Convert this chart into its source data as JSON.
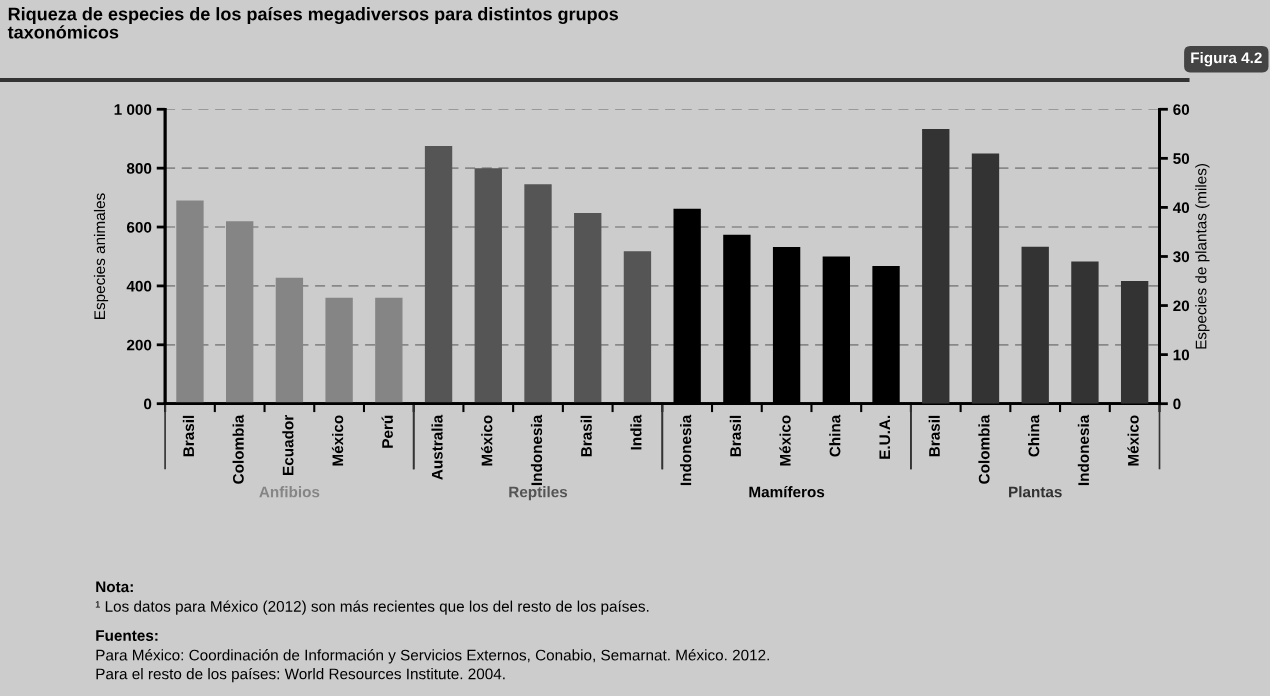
{
  "chart_data": {
    "type": "bar",
    "title": "Riqueza de especies de los países megadiversos para distintos grupos\ntaxonómicos",
    "ylabel": "Especies animales",
    "y2label": "Especies de plantas (miles)",
    "categories": [
      "Brasil",
      "Colombia",
      "Ecuador",
      "México",
      "Perú",
      "Australia",
      "México",
      "Indonesia",
      "Brasil",
      "India",
      "Indonesia",
      "Brasil",
      "México",
      "China",
      "E.U.A.",
      "Brasil",
      "Colombia",
      "China",
      "Indonesia",
      "México"
    ],
    "series": [
      {
        "name": "Anfibios",
        "color": "#858585",
        "values": [
          690,
          620,
          428,
          360,
          360,
          null,
          null,
          null,
          null,
          null,
          null,
          null,
          null,
          null,
          null,
          null,
          null,
          null,
          null,
          null
        ]
      },
      {
        "name": "Reptiles",
        "color": "#555555",
        "values": [
          null,
          null,
          null,
          null,
          null,
          875,
          800,
          745,
          648,
          518,
          null,
          null,
          null,
          null,
          null,
          null,
          null,
          null,
          null,
          null
        ]
      },
      {
        "name": "Mamíferos",
        "color": "#000000",
        "values": [
          null,
          null,
          null,
          null,
          null,
          null,
          null,
          null,
          null,
          null,
          662,
          574,
          532,
          500,
          468,
          null,
          null,
          null,
          null,
          null
        ]
      },
      {
        "name": "Plantas",
        "color": "#333333",
        "axis": "y2",
        "values": [
          null,
          null,
          null,
          null,
          null,
          null,
          null,
          null,
          null,
          null,
          null,
          null,
          null,
          null,
          null,
          56,
          51,
          32,
          29,
          25
        ]
      }
    ],
    "ylim": [
      0,
      1000
    ],
    "yticks": [
      0,
      200,
      400,
      600,
      800,
      {
        "value": 1000,
        "label": "1 000"
      }
    ],
    "y2lim": [
      0,
      60
    ],
    "y2ticks": [
      0,
      10,
      20,
      30,
      40,
      50,
      60
    ],
    "grid": "y",
    "legend": false,
    "annotations": [
      "Figura 4.2",
      "Nota:",
      "¹ Los datos para México (2012) son más recientes que los del resto de los países.",
      "Fuentes:",
      "Para México: Coordinación de Información y Servicios Externos, Conabio, Semarnat. México. 2012.",
      "Para el resto de los países: World Resources Institute. 2004."
    ]
  }
}
